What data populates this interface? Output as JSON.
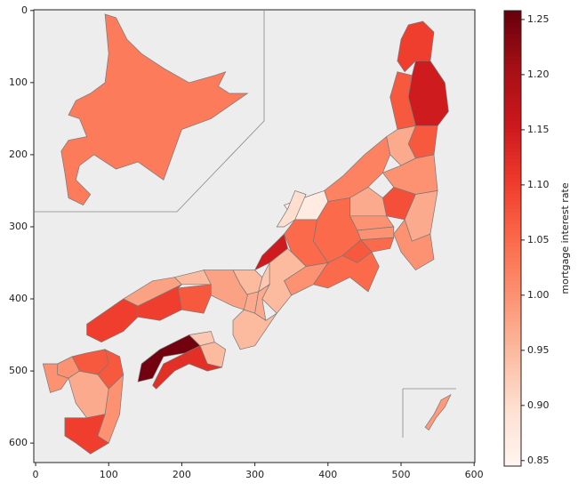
{
  "chart_data": {
    "type": "choropleth",
    "colorbar_label": "mortgage interest rate",
    "colormap": [
      "#fff5f0",
      "#fee0d2",
      "#fcbba1",
      "#fc9272",
      "#fb6a4a",
      "#ef3b2c",
      "#cb181d",
      "#a50f15",
      "#67000d"
    ],
    "clim": [
      0.845,
      1.258
    ],
    "cticks": [
      0.85,
      0.9,
      0.95,
      1.0,
      1.05,
      1.1,
      1.15,
      1.2,
      1.25
    ],
    "xlim": [
      -2.5,
      601
    ],
    "ylim": [
      627,
      -1
    ],
    "xticks": [
      0,
      100,
      200,
      300,
      400,
      500,
      600
    ],
    "yticks": [
      0,
      100,
      200,
      300,
      400,
      500,
      600
    ],
    "values": [
      1.03,
      1.1,
      1.15,
      1.07,
      1.07,
      0.97,
      1.0,
      1.02,
      1.08,
      0.97,
      0.97,
      1.0,
      1.0,
      1.0,
      1.05,
      1.05,
      1.07,
      1.05,
      0.87,
      0.9,
      1.05,
      1.15,
      1.0,
      0.95,
      0.93,
      0.95,
      0.97,
      0.97,
      0.95,
      0.98,
      0.95,
      1.07,
      0.98,
      1.1,
      1.1,
      0.93,
      0.95,
      1.25,
      1.12,
      1.07,
      1.0,
      1.0,
      1.07,
      0.97,
      1.0,
      1.1,
      0.99
    ]
  }
}
